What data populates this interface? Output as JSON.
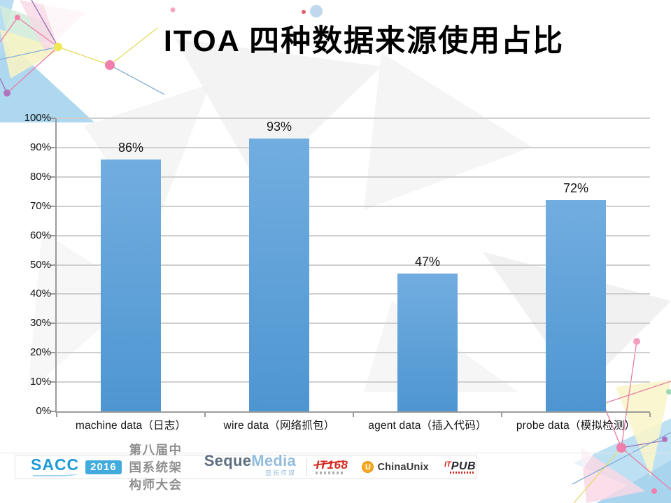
{
  "title": "ITOA 四种数据来源使用占比",
  "chart_data": {
    "type": "bar",
    "title": "ITOA 四种数据来源使用占比",
    "categories": [
      "machine data（日志）",
      "wire data（网络抓包）",
      "agent data（插入代码）",
      "probe data（模拟检测）"
    ],
    "values": [
      86,
      93,
      47,
      72
    ],
    "value_labels": [
      "86%",
      "93%",
      "47%",
      "72%"
    ],
    "xlabel": "",
    "ylabel": "",
    "ylim": [
      0,
      100
    ],
    "ytick_step": 10,
    "ytick_labels": [
      "0%",
      "10%",
      "20%",
      "30%",
      "40%",
      "50%",
      "60%",
      "70%",
      "80%",
      "90%",
      "100%"
    ],
    "grid": true,
    "legend": false,
    "bar_color_top": "#72ade0",
    "bar_color_bottom": "#4e96d1"
  },
  "footer": {
    "sacc": "SACC",
    "year": "2016",
    "conference": "第八届中国系统架构师大会",
    "seque": "Seque",
    "media": "Media",
    "media_sub": "盛拓传媒",
    "it168": "IT168",
    "chinaunix_badge": "U",
    "chinaunix": "ChinaUnix",
    "itpub_it": "IT",
    "itpub_pub": "PUB"
  },
  "colors": {
    "bar_top": "#72ade0",
    "bar_bottom": "#4e96d1",
    "gridline": "#cfcfcf",
    "axis": "#9b9b9b",
    "accent_blue": "#1e9ad6",
    "accent_red": "#d5281e",
    "accent_orange": "#f7a921"
  }
}
